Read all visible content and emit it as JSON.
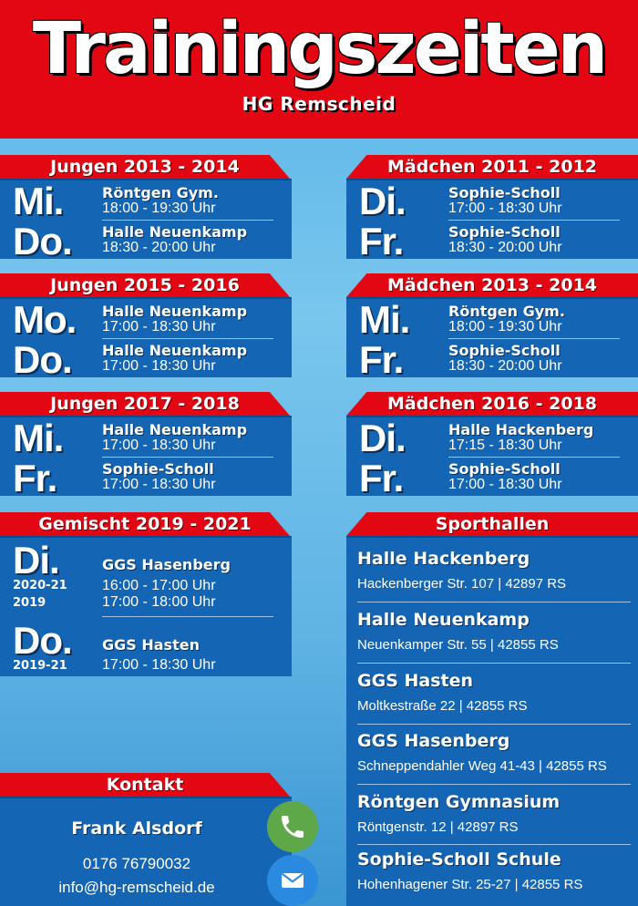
{
  "header": {
    "title": "Trainingszeiten",
    "subtitle": "HG Remscheid"
  },
  "groups_left": [
    {
      "title": "Jungen 2013 - 2014",
      "sessions": [
        {
          "day": "Mi.",
          "hall": "Röntgen Gym.",
          "time": "18:00 - 19:30 Uhr"
        },
        {
          "day": "Do.",
          "hall": "Halle Neuenkamp",
          "time": "18:30 - 20:00 Uhr"
        }
      ]
    },
    {
      "title": "Jungen 2015 - 2016",
      "sessions": [
        {
          "day": "Mo.",
          "hall": "Halle Neuenkamp",
          "time": "17:00 - 18:30 Uhr"
        },
        {
          "day": "Do.",
          "hall": "Halle Neuenkamp",
          "time": "17:00 - 18:30 Uhr"
        }
      ]
    },
    {
      "title": "Jungen 2017 - 2018",
      "sessions": [
        {
          "day": "Mi.",
          "hall": "Halle Neuenkamp",
          "time": "17:00 - 18:30 Uhr"
        },
        {
          "day": "Fr.",
          "hall": "Sophie-Scholl",
          "time": "17:00 - 18:30 Uhr"
        }
      ]
    }
  ],
  "groups_right": [
    {
      "title": "Mädchen 2011 - 2012",
      "sessions": [
        {
          "day": "Di.",
          "hall": "Sophie-Scholl",
          "time": "17:00 - 18:30 Uhr"
        },
        {
          "day": "Fr.",
          "hall": "Sophie-Scholl",
          "time": "18:30 - 20:00 Uhr"
        }
      ]
    },
    {
      "title": "Mädchen 2013 - 2014",
      "sessions": [
        {
          "day": "Mi.",
          "hall": "Röntgen Gym.",
          "time": "18:00 - 19:30 Uhr"
        },
        {
          "day": "Fr.",
          "hall": "Sophie-Scholl",
          "time": "18:30 - 20:00 Uhr"
        }
      ]
    },
    {
      "title": "Mädchen 2016 - 2018",
      "sessions": [
        {
          "day": "Di.",
          "hall": "Halle Hackenberg",
          "time": "17:15 - 18:30 Uhr"
        },
        {
          "day": "Fr.",
          "hall": "Sophie-Scholl",
          "time": "17:00 - 18:30 Uhr"
        }
      ]
    }
  ],
  "mixed": {
    "title": "Gemischt 2019 - 2021",
    "di": {
      "day": "Di.",
      "hall": "GGS Hasenberg",
      "years": [
        "2020-21",
        "2019"
      ],
      "times": [
        "16:00 - 17:00 Uhr",
        "17:00 - 18:00 Uhr"
      ]
    },
    "do": {
      "day": "Do.",
      "hall": "GGS Hasten",
      "year": "2019-21",
      "time": "17:00 - 18:30 Uhr"
    }
  },
  "venues": {
    "title": "Sporthallen",
    "items": [
      {
        "name": "Halle Hackenberg",
        "address": "Hackenberger Str. 107 | 42897 RS"
      },
      {
        "name": "Halle Neuenkamp",
        "address": "Neuenkamper Str. 55 | 42855 RS"
      },
      {
        "name": "GGS Hasten",
        "address": "Moltkestraße 22 | 42855 RS"
      },
      {
        "name": "GGS Hasenberg",
        "address": "Schneppendahler Weg 41-43 | 42855 RS"
      },
      {
        "name": "Röntgen Gymnasium",
        "address": "Röntgenstr. 12 | 42897 RS"
      },
      {
        "name": "Sophie-Scholl Schule",
        "address": "Hohenhagener Str. 25-27 | 42855 RS"
      }
    ]
  },
  "contact": {
    "title": "Kontakt",
    "name": "Frank Alsdorf",
    "phone": "0176 76790032",
    "email": "info@hg-remscheid.de",
    "phone_icon": "phone-icon",
    "mail_icon": "mail-icon"
  },
  "colors": {
    "red": "#e30613",
    "panel_blue": "#1565b5",
    "phone_green": "#5fa84a",
    "mail_blue": "#2a8ae0"
  }
}
